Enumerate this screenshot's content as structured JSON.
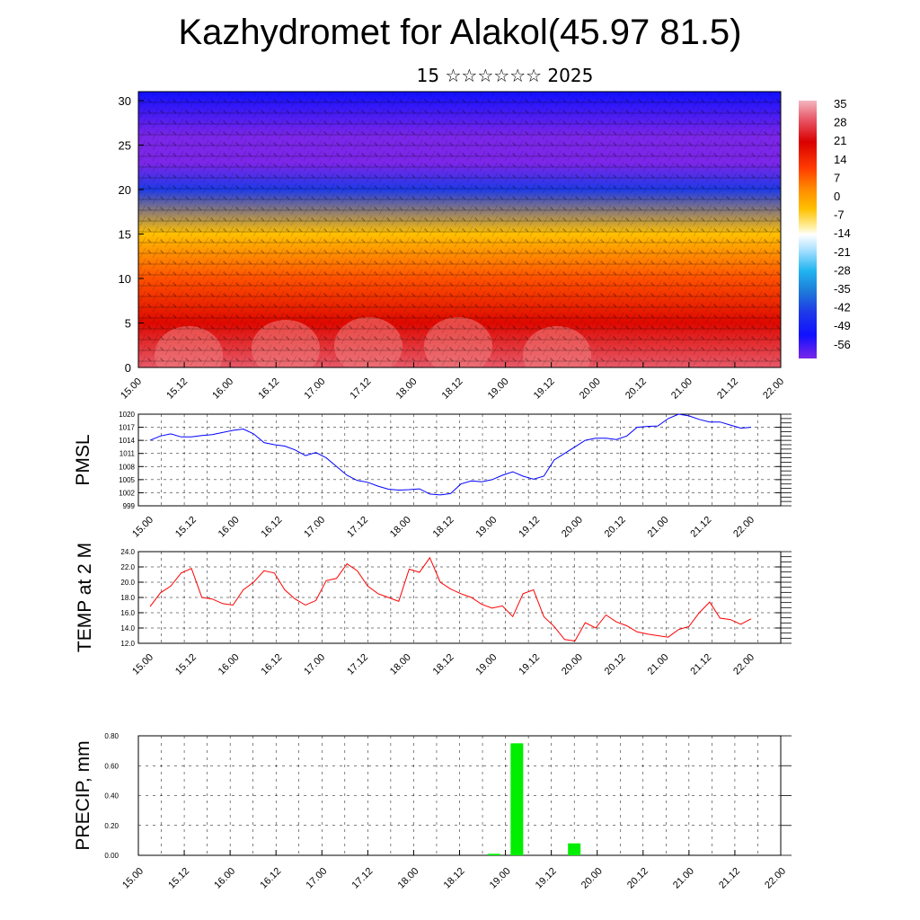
{
  "title": "Kazhydromet for Alakol(45.97 81.5)",
  "subtitle": "15 ☆☆☆☆☆☆ 2025",
  "colors": {
    "pmsl": "#0000ff",
    "temp": "#ff0000",
    "precip": "#00ee00"
  },
  "chart_data": [
    {
      "type": "heatmap",
      "name": "cross-section",
      "xlabel": "",
      "ylabel": "",
      "x_ticks": [
        "15.00",
        "15.12",
        "16.00",
        "16.12",
        "17.00",
        "17.12",
        "18.00",
        "18.12",
        "19.00",
        "19.12",
        "20.00",
        "20.12",
        "21.00",
        "21.12",
        "22.00"
      ],
      "y_ticks": [
        0,
        5,
        10,
        15,
        20,
        25,
        30
      ],
      "ylim": [
        0,
        31
      ],
      "colorbar_labels": [
        "35",
        "28",
        "21",
        "14",
        "7",
        "0",
        "-7",
        "-14",
        "-21",
        "-28",
        "-35",
        "-42",
        "-49",
        "-56"
      ],
      "profile_levels": [
        0,
        5,
        10,
        15,
        20,
        23,
        26,
        31
      ],
      "profile_values": [
        28,
        20,
        12,
        0,
        -35,
        -56,
        -56,
        -49
      ]
    },
    {
      "type": "line",
      "name": "PMSL",
      "ylabel": "PMSL",
      "ylim": [
        999,
        1020
      ],
      "y_ticks": [
        "999",
        "1002",
        "1005",
        "1008",
        "1011",
        "1014",
        "1017",
        "1020"
      ],
      "x_ticks": [
        "15.00",
        "15.12",
        "16.00",
        "16.12",
        "17.00",
        "17.12",
        "18.00",
        "18.12",
        "19.00",
        "19.12",
        "20.00",
        "20.12",
        "21.00",
        "21.12",
        "22.00"
      ],
      "series": [
        {
          "values": [
            1014,
            1015,
            1015.5,
            1014.8,
            1014.8,
            1015.1,
            1015.3,
            1015.8,
            1016.3,
            1016.6,
            1015.5,
            1013.5,
            1013,
            1012.7,
            1011.8,
            1010.5,
            1011.2,
            1010,
            1008,
            1006,
            1004.8,
            1004.4,
            1003.5,
            1002.8,
            1002.6,
            1002.7,
            1002.9,
            1001.7,
            1001.5,
            1001.8,
            1004,
            1004.7,
            1004.5,
            1005,
            1006,
            1006.8,
            1005.8,
            1005.1,
            1005.8,
            1009.5,
            1011,
            1012.5,
            1014,
            1014.5,
            1014.5,
            1014.2,
            1015,
            1017,
            1017.2,
            1017.3,
            1019,
            1020,
            1019.6,
            1018.8,
            1018.2,
            1018.2,
            1017.5,
            1016.8,
            1017
          ]
        }
      ]
    },
    {
      "type": "line",
      "name": "TEMP at 2 M",
      "ylabel": "TEMP at 2 M",
      "ylim": [
        12.0,
        24.0
      ],
      "y_ticks": [
        "12.0",
        "14.0",
        "16.0",
        "18.0",
        "20.0",
        "22.0",
        "24.0"
      ],
      "x_ticks": [
        "15.00",
        "15.12",
        "16.00",
        "16.12",
        "17.00",
        "17.12",
        "18.00",
        "18.12",
        "19.00",
        "19.12",
        "20.00",
        "20.12",
        "21.00",
        "21.12",
        "22.00"
      ],
      "series": [
        {
          "values": [
            16.8,
            18.6,
            19.5,
            21.2,
            21.8,
            18.0,
            17.8,
            17.2,
            17.0,
            19.0,
            20.0,
            21.5,
            21.2,
            19.0,
            17.8,
            17.0,
            17.6,
            20.2,
            20.5,
            22.4,
            21.5,
            19.5,
            18.5,
            18.0,
            17.5,
            21.7,
            21.3,
            23.2,
            20.0,
            19.1,
            18.5,
            18.0,
            17.1,
            16.6,
            16.9,
            15.5,
            18.5,
            19.0,
            15.5,
            14.2,
            12.5,
            12.3,
            14.7,
            14.0,
            15.7,
            14.8,
            14.3,
            13.5,
            13.2,
            13.0,
            12.8,
            13.8,
            14.2,
            16.0,
            17.4,
            15.3,
            15.1,
            14.5,
            15.2
          ]
        }
      ]
    },
    {
      "type": "bar",
      "name": "PRECIP, mm",
      "ylabel": "PRECIP, mm",
      "ylim": [
        0,
        0.8
      ],
      "y_ticks": [
        "0.00",
        "0.20",
        "0.40",
        "0.60",
        "0.80"
      ],
      "x_ticks": [
        "15.00",
        "15.12",
        "16.00",
        "16.12",
        "17.00",
        "17.12",
        "18.00",
        "18.12",
        "19.00",
        "19.12",
        "20.00",
        "20.12",
        "21.00",
        "21.12",
        "22.00"
      ],
      "bars": [
        {
          "x": "18.21",
          "value": 0.01
        },
        {
          "x": "19.03",
          "value": 0.75
        },
        {
          "x": "19.18",
          "value": 0.08
        }
      ]
    }
  ]
}
